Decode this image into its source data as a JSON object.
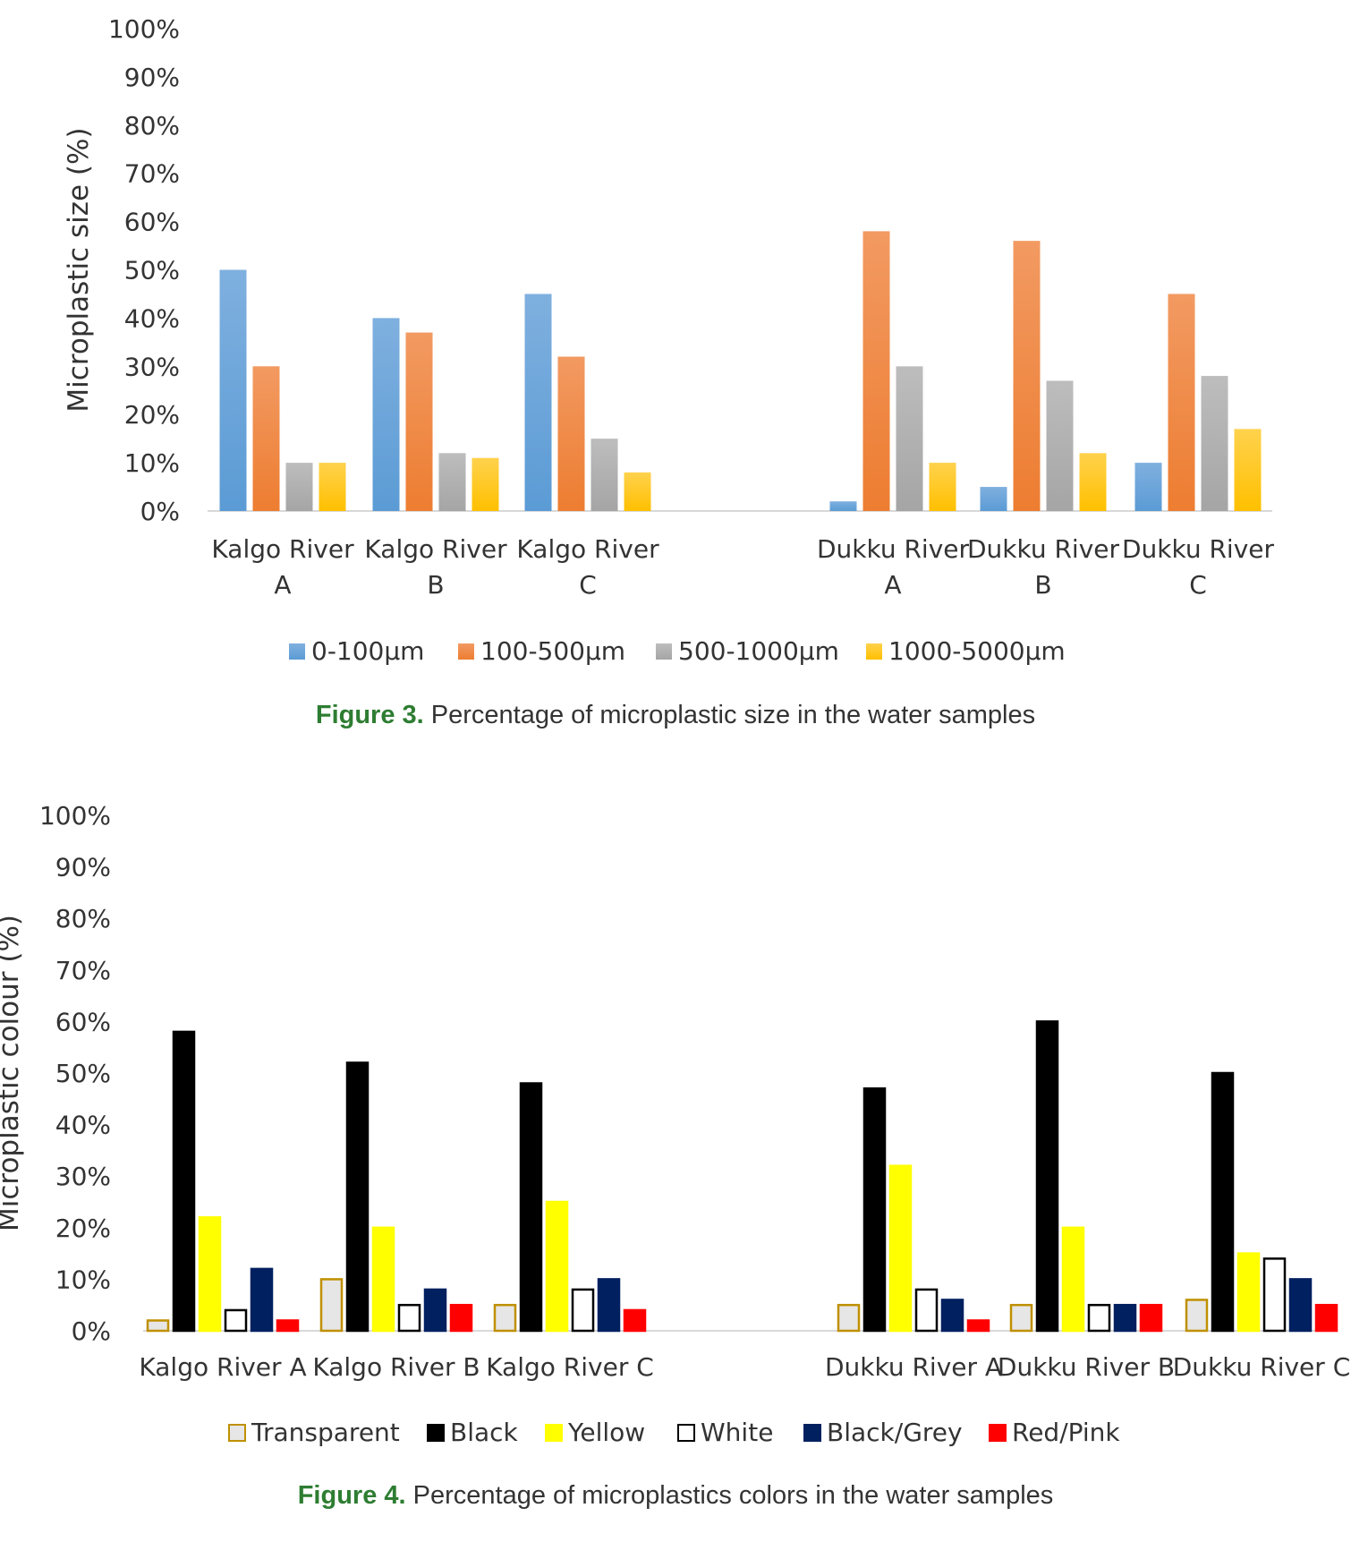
{
  "chart_data": [
    {
      "type": "bar",
      "ylabel": "Microplastic size (%)",
      "ylim": [
        0,
        100
      ],
      "yticks": [
        "0%",
        "10%",
        "20%",
        "30%",
        "40%",
        "50%",
        "60%",
        "70%",
        "80%",
        "90%",
        "100%"
      ],
      "categories": [
        [
          "Kalgo River",
          "A"
        ],
        [
          "Kalgo River",
          "B"
        ],
        [
          "Kalgo River",
          "C"
        ],
        [
          "Dukku River",
          "A"
        ],
        [
          "Dukku River",
          "B"
        ],
        [
          "Dukku River",
          "C"
        ]
      ],
      "series": [
        {
          "name": "0-100µm",
          "color": "#5b9bd5",
          "values": [
            50,
            40,
            45,
            2,
            5,
            10
          ]
        },
        {
          "name": "100-500µm",
          "color": "#ed7d31",
          "values": [
            30,
            37,
            32,
            58,
            56,
            45
          ]
        },
        {
          "name": "500-1000µm",
          "color": "#a5a5a5",
          "values": [
            10,
            12,
            15,
            30,
            27,
            28
          ]
        },
        {
          "name": "1000-5000µm",
          "color": "#ffc000",
          "values": [
            10,
            11,
            8,
            10,
            12,
            17
          ]
        }
      ],
      "legend_position": "bottom",
      "grid": false
    },
    {
      "type": "bar",
      "ylabel": "Microplastic colour (%)",
      "ylim": [
        0,
        100
      ],
      "yticks": [
        "0%",
        "10%",
        "20%",
        "30%",
        "40%",
        "50%",
        "60%",
        "70%",
        "80%",
        "90%",
        "100%"
      ],
      "categories": [
        [
          "Kalgo River A"
        ],
        [
          "Kalgo River B"
        ],
        [
          "Kalgo River C"
        ],
        [
          "Dukku River A"
        ],
        [
          "Dukku River B"
        ],
        [
          "Dukku River C"
        ]
      ],
      "series": [
        {
          "name": "Transparent",
          "color": "#e7e6e6",
          "stroke": "#bf9000",
          "values": [
            2,
            10,
            5,
            5,
            5,
            6
          ]
        },
        {
          "name": "Black",
          "color": "#000000",
          "stroke": "#000000",
          "values": [
            58,
            52,
            48,
            47,
            60,
            50
          ]
        },
        {
          "name": "Yellow",
          "color": "#ffff00",
          "stroke": "#ffff00",
          "values": [
            22,
            20,
            25,
            32,
            20,
            15
          ]
        },
        {
          "name": "White",
          "color": "#ffffff",
          "stroke": "#000000",
          "values": [
            4,
            5,
            8,
            8,
            5,
            14
          ]
        },
        {
          "name": "Black/Grey",
          "color": "#002060",
          "stroke": "#002060",
          "values": [
            12,
            8,
            10,
            6,
            5,
            10
          ]
        },
        {
          "name": "Red/Pink",
          "color": "#ff0000",
          "stroke": "#ff0000",
          "values": [
            2,
            5,
            4,
            2,
            5,
            5
          ]
        }
      ],
      "legend_position": "bottom",
      "grid": false
    }
  ],
  "captions": [
    {
      "number": "Figure 3.",
      "text": " Percentage of microplastic size in the water samples"
    },
    {
      "number": "Figure 4.",
      "text": " Percentage of microplastics colors in the water samples"
    }
  ]
}
